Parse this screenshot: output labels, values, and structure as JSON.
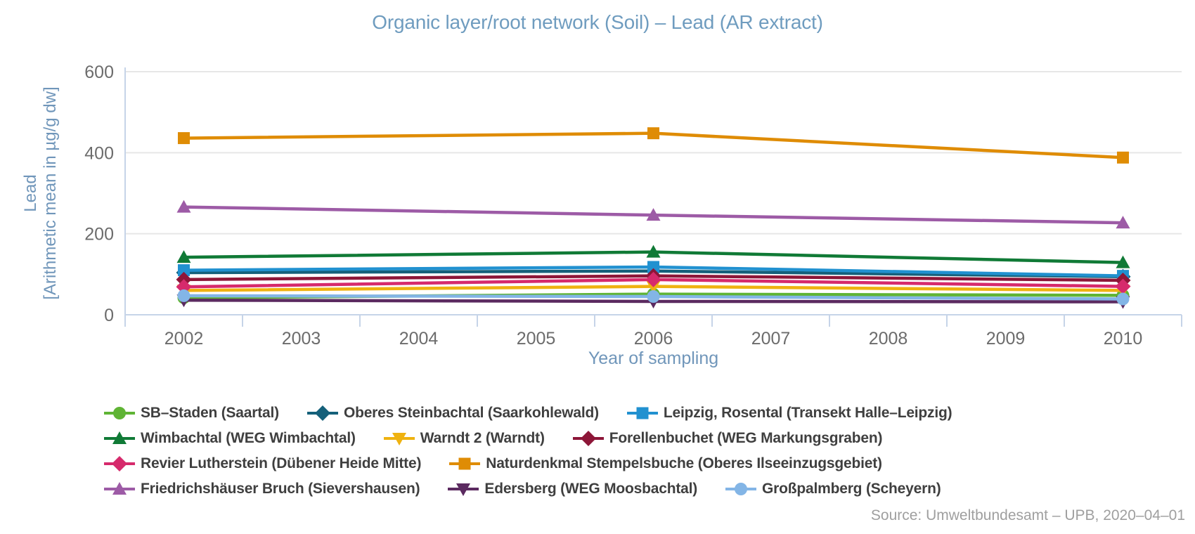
{
  "title": "Organic layer/root network (Soil) – Lead (AR extract)",
  "source": "Source: Umweltbundesamt – UPB, 2020–04–01",
  "colors": {
    "title_text": "#6f9cbf",
    "axis_title_text": "#7096ba",
    "tick_text": "#6c6c6c",
    "axis_line": "#c6d4e8",
    "grid_line": "#e7e7e7",
    "legend_text": "#3f3f3f",
    "source_text": "#9f9f9f",
    "background": "#ffffff"
  },
  "chart_data": {
    "type": "line",
    "title": "Organic layer/root network (Soil) – Lead (AR extract)",
    "xlabel": "Year of sampling",
    "ylabel": "Lead [Arithmetic mean in µg/g dw]",
    "ylabel_line1": "Lead",
    "ylabel_line2": "[Arithmetic mean in µg/g dw]",
    "x_categories": [
      "2002",
      "2003",
      "2004",
      "2005",
      "2006",
      "2007",
      "2008",
      "2009",
      "2010"
    ],
    "ylim": [
      0,
      600
    ],
    "yticks": [
      0,
      200,
      400,
      600
    ],
    "grid": "horizontal",
    "legend_position": "bottom",
    "sample_years": [
      "2002",
      "2006",
      "2010"
    ],
    "sample_indices": [
      0,
      4,
      8
    ],
    "series": [
      {
        "name": "SB–Staden (Saartal)",
        "marker": "circle",
        "color": "#5fb434",
        "values": [
          42,
          51,
          48
        ]
      },
      {
        "name": "Oberes Steinbachtal (Saarkohlewald)",
        "marker": "diamond",
        "color": "#15607a",
        "values": [
          104,
          108,
          94
        ]
      },
      {
        "name": "Leipzig, Rosental (Transekt Halle–Leipzig)",
        "marker": "square",
        "color": "#2191d0",
        "values": [
          110,
          118,
          96
        ]
      },
      {
        "name": "Wimbachtal (WEG Wimbachtal)",
        "marker": "triangle-up",
        "color": "#107a36",
        "values": [
          142,
          155,
          129
        ]
      },
      {
        "name": "Warndt 2 (Warndt)",
        "marker": "triangle-down",
        "color": "#efb210",
        "values": [
          60,
          70,
          60
        ]
      },
      {
        "name": "Forellenbuchet (WEG Markungsgraben)",
        "marker": "diamond",
        "color": "#8d1638",
        "values": [
          87,
          96,
          85
        ]
      },
      {
        "name": "Revier Lutherstein (Dübener Heide Mitte)",
        "marker": "diamond",
        "color": "#d62a6c",
        "values": [
          69,
          87,
          70
        ]
      },
      {
        "name": "Naturdenkmal Stempelsbuche (Oberes Ilseeinzugsgebiet)",
        "marker": "square",
        "color": "#df8c05",
        "values": [
          436,
          448,
          388
        ]
      },
      {
        "name": "Friedrichshäuser Bruch (Sievershausen)",
        "marker": "triangle-up",
        "color": "#9d5ba6",
        "values": [
          266,
          246,
          227
        ]
      },
      {
        "name": "Edersberg (WEG Moosbachtal)",
        "marker": "triangle-down",
        "color": "#5b2a60",
        "values": [
          36,
          33,
          32
        ]
      },
      {
        "name": "Großpalmberg (Scheyern)",
        "marker": "circle",
        "color": "#83b5e6",
        "values": [
          47,
          45,
          39
        ]
      }
    ]
  }
}
